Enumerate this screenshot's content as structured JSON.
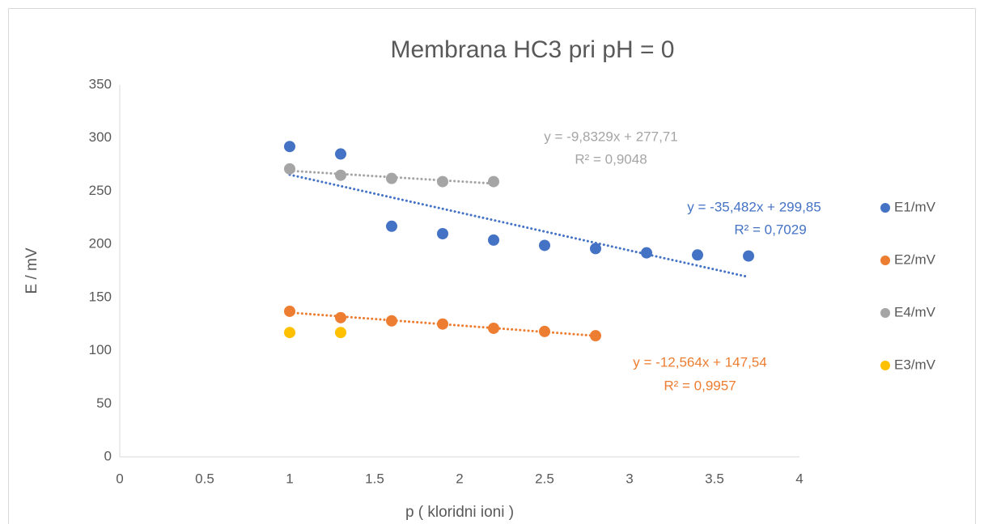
{
  "chart_data": {
    "type": "scatter",
    "title": "Membrana HC3 pri pH = 0",
    "x_label": "p ( kloridni ioni )",
    "y_label": "E / mV",
    "xlim": [
      0,
      4
    ],
    "xticks": [
      0,
      0.5,
      1,
      1.5,
      2,
      2.5,
      3,
      3.5,
      4
    ],
    "ylim": [
      0,
      350
    ],
    "yticks": [
      0,
      50,
      100,
      150,
      200,
      250,
      300,
      350
    ],
    "grid": false,
    "legend": "right",
    "series": [
      {
        "name": "E1/mV",
        "color": "#4472c4",
        "x": [
          1,
          1.3,
          1.6,
          1.9,
          2.2,
          2.5,
          2.8,
          3.1,
          3.4,
          3.7
        ],
        "values": [
          292,
          285,
          217,
          210,
          204,
          199,
          196,
          192,
          190,
          189
        ],
        "trendline_label": [
          "y = -35,482x + 299,85",
          "R² = 0,7029"
        ]
      },
      {
        "name": "E2/mV",
        "color": "#ed7d31",
        "x": [
          1,
          1.3,
          1.6,
          1.9,
          2.2,
          2.5,
          2.8
        ],
        "values": [
          137,
          131,
          128,
          125,
          121,
          118,
          114
        ],
        "trendline_label": [
          "y = -12,564x + 147,54",
          "R² = 0,9957"
        ]
      },
      {
        "name": "E4/mV",
        "color": "#a5a5a5",
        "x": [
          1,
          1.3,
          1.6,
          1.9,
          2.2
        ],
        "values": [
          271,
          265,
          262,
          259,
          259
        ],
        "trendline_label": [
          "y = -9,8329x + 277,71",
          "R² = 0,9048"
        ]
      },
      {
        "name": "E3/mV",
        "color": "#ffc000",
        "x": [
          1,
          1.3
        ],
        "values": [
          117,
          117
        ]
      }
    ]
  }
}
